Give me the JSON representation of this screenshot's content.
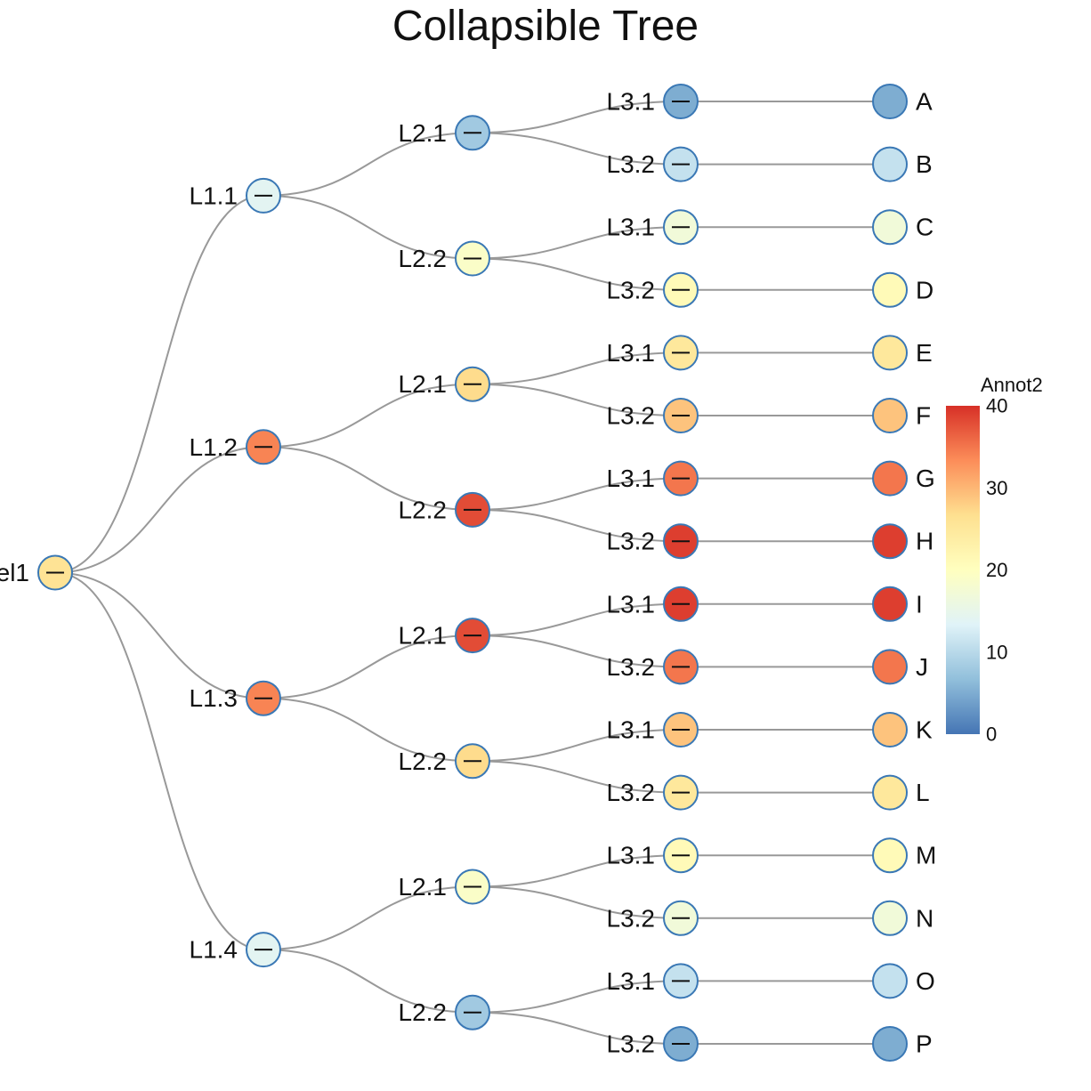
{
  "title": "Collapsible Tree",
  "colors": {
    "link": "#999999",
    "node_stroke": "#3a78b5",
    "scale": [
      "#4575b4",
      "#91bfdb",
      "#e0f3f8",
      "#ffffbf",
      "#fee090",
      "#fc8d59",
      "#d73027"
    ]
  },
  "legend": {
    "title": "Annot2",
    "min": 0,
    "max": 40,
    "ticks": [
      0,
      10,
      20,
      30,
      40
    ]
  },
  "tree": {
    "label": "el1",
    "value": 26,
    "children": [
      {
        "label": "L1.1",
        "value": 14,
        "children": [
          {
            "label": "L2.1",
            "value": 8,
            "children": [
              {
                "label": "L3.1",
                "value": 5,
                "children": [
                  {
                    "label": "A",
                    "value": 5
                  }
                ]
              },
              {
                "label": "L3.2",
                "value": 11,
                "children": [
                  {
                    "label": "B",
                    "value": 11
                  }
                ]
              }
            ]
          },
          {
            "label": "L2.2",
            "value": 19,
            "children": [
              {
                "label": "L3.1",
                "value": 17,
                "children": [
                  {
                    "label": "C",
                    "value": 17
                  }
                ]
              },
              {
                "label": "L3.2",
                "value": 21,
                "children": [
                  {
                    "label": "D",
                    "value": 21
                  }
                ]
              }
            ]
          }
        ]
      },
      {
        "label": "L1.2",
        "value": 34,
        "children": [
          {
            "label": "L2.1",
            "value": 27,
            "children": [
              {
                "label": "L3.1",
                "value": 25,
                "children": [
                  {
                    "label": "E",
                    "value": 25
                  }
                ]
              },
              {
                "label": "L3.2",
                "value": 29,
                "children": [
                  {
                    "label": "F",
                    "value": 29
                  }
                ]
              }
            ]
          },
          {
            "label": "L2.2",
            "value": 38,
            "children": [
              {
                "label": "L3.1",
                "value": 35,
                "children": [
                  {
                    "label": "G",
                    "value": 35
                  }
                ]
              },
              {
                "label": "L3.2",
                "value": 39,
                "children": [
                  {
                    "label": "H",
                    "value": 39
                  }
                ]
              }
            ]
          }
        ]
      },
      {
        "label": "L1.3",
        "value": 34,
        "children": [
          {
            "label": "L2.1",
            "value": 38,
            "children": [
              {
                "label": "L3.1",
                "value": 39,
                "children": [
                  {
                    "label": "I",
                    "value": 39
                  }
                ]
              },
              {
                "label": "L3.2",
                "value": 35,
                "children": [
                  {
                    "label": "J",
                    "value": 35
                  }
                ]
              }
            ]
          },
          {
            "label": "L2.2",
            "value": 27,
            "children": [
              {
                "label": "L3.1",
                "value": 29,
                "children": [
                  {
                    "label": "K",
                    "value": 29
                  }
                ]
              },
              {
                "label": "L3.2",
                "value": 25,
                "children": [
                  {
                    "label": "L",
                    "value": 25
                  }
                ]
              }
            ]
          }
        ]
      },
      {
        "label": "L1.4",
        "value": 14,
        "children": [
          {
            "label": "L2.1",
            "value": 19,
            "children": [
              {
                "label": "L3.1",
                "value": 21,
                "children": [
                  {
                    "label": "M",
                    "value": 21
                  }
                ]
              },
              {
                "label": "L3.2",
                "value": 17,
                "children": [
                  {
                    "label": "N",
                    "value": 17
                  }
                ]
              }
            ]
          },
          {
            "label": "L2.2",
            "value": 8,
            "children": [
              {
                "label": "L3.1",
                "value": 11,
                "children": [
                  {
                    "label": "O",
                    "value": 11
                  }
                ]
              },
              {
                "label": "L3.2",
                "value": 5,
                "children": [
                  {
                    "label": "P",
                    "value": 5
                  }
                ]
              }
            ]
          }
        ]
      }
    ]
  }
}
